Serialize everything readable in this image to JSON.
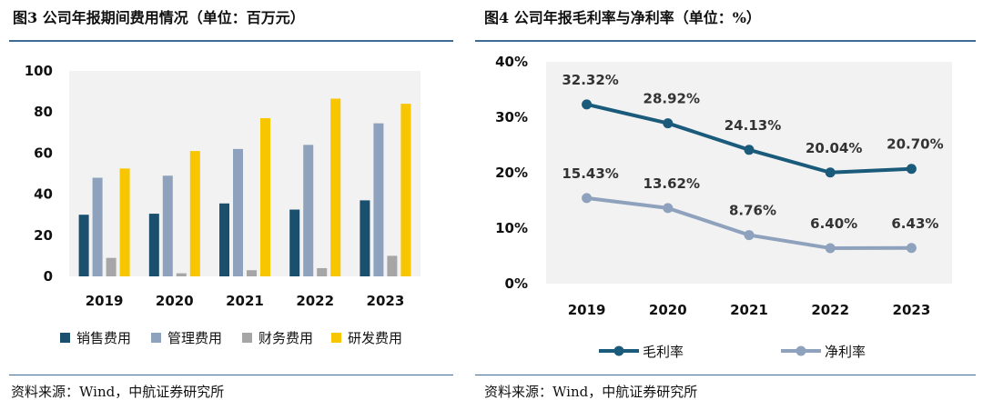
{
  "left": {
    "title": "图3  公司年报期间费用情况（单位：百万元）",
    "source": "资料来源：Wind，中航证券研究所"
  },
  "right": {
    "title": "图4  公司年报毛利率与净利率（单位：%）",
    "source": "资料来源：Wind，中航证券研究所"
  },
  "colors": {
    "sales": "#1a4f6e",
    "mgmt": "#8fa2bd",
    "finance": "#a6a6a6",
    "rnd": "#f7c600",
    "gross": "#1a5a7a",
    "net": "#8fa2bd",
    "rule": "#3f6c94"
  },
  "chart_data": [
    {
      "type": "bar",
      "title": "公司年报期间费用情况（单位：百万元）",
      "categories": [
        "2019",
        "2020",
        "2021",
        "2022",
        "2023"
      ],
      "ylim": [
        0,
        100
      ],
      "yticks": [
        "0",
        "20",
        "40",
        "60",
        "80",
        "100"
      ],
      "series": [
        {
          "name": "销售费用",
          "values": [
            30,
            30.5,
            35.5,
            32.5,
            37
          ]
        },
        {
          "name": "管理费用",
          "values": [
            48,
            49,
            62,
            64,
            74.5
          ]
        },
        {
          "name": "财务费用",
          "values": [
            9,
            1.5,
            3,
            4,
            10
          ]
        },
        {
          "name": "研发费用",
          "values": [
            52.5,
            61,
            77,
            86.5,
            84
          ]
        }
      ],
      "legend_position": "bottom"
    },
    {
      "type": "line",
      "title": "公司年报毛利率与净利率（单位：%）",
      "categories": [
        "2019",
        "2020",
        "2021",
        "2022",
        "2023"
      ],
      "ylim": [
        0,
        40
      ],
      "yticks": [
        "0%",
        "10%",
        "20%",
        "30%",
        "40%"
      ],
      "series": [
        {
          "name": "毛利率",
          "values": [
            32.32,
            28.92,
            24.13,
            20.04,
            20.7
          ],
          "labels": [
            "32.32%",
            "28.92%",
            "24.13%",
            "20.04%",
            "20.70%"
          ]
        },
        {
          "name": "净利率",
          "values": [
            15.43,
            13.62,
            8.76,
            6.4,
            6.43
          ],
          "labels": [
            "15.43%",
            "13.62%",
            "8.76%",
            "6.40%",
            "6.43%"
          ]
        }
      ],
      "legend_position": "bottom"
    }
  ]
}
